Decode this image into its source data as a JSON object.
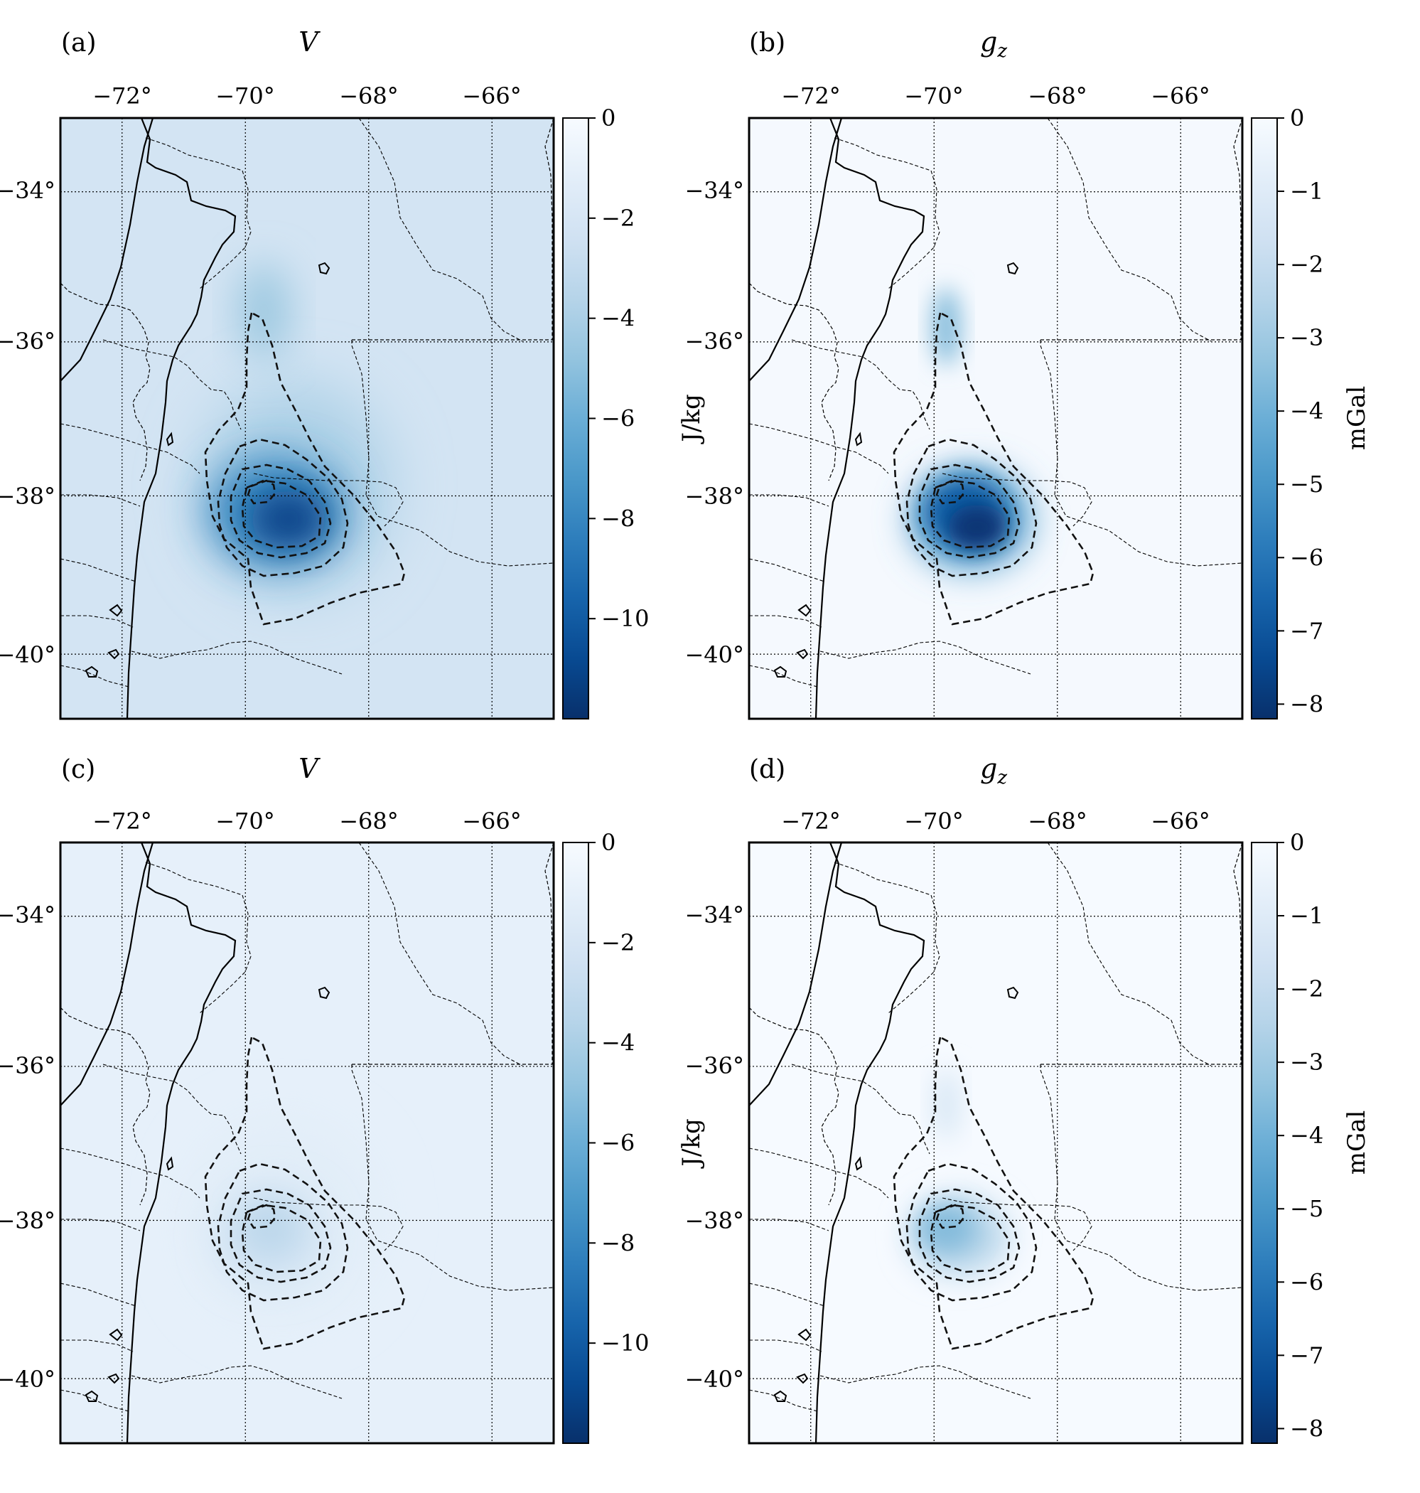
{
  "figure": {
    "panels": [
      {
        "id": "a",
        "label": "(a)",
        "title": "V",
        "title_sub": "",
        "colorbar_label": "J/kg",
        "cbar_key": "V"
      },
      {
        "id": "b",
        "label": "(b)",
        "title": "g",
        "title_sub": "z",
        "colorbar_label": "mGal",
        "cbar_key": "gz"
      },
      {
        "id": "c",
        "label": "(c)",
        "title": "V",
        "title_sub": "",
        "colorbar_label": "J/kg",
        "cbar_key": "V"
      },
      {
        "id": "d",
        "label": "(d)",
        "title": "g",
        "title_sub": "z",
        "colorbar_label": "mGal",
        "cbar_key": "gz"
      }
    ],
    "longitude_ticks": [
      "−72°",
      "−70°",
      "−68°",
      "−66°"
    ],
    "latitude_ticks": [
      "−34°",
      "−36°",
      "−38°",
      "−40°"
    ],
    "colors": {
      "dark": "#08306b",
      "mid": "#4292c6",
      "light": "#f7fbff",
      "contour": "#111111"
    }
  },
  "chart_data": [
    {
      "type": "heatmap",
      "panel": "a",
      "title": "V",
      "colorbar_label": "J/kg",
      "xlim": [
        -73,
        -65
      ],
      "ylim": [
        -40.8,
        -33
      ],
      "vmin": -12,
      "vmax": 0,
      "colorbar_ticks": [
        0,
        -2,
        -4,
        -6,
        -8,
        -10
      ],
      "colorbar_tick_labels": [
        "0",
        "−2",
        "−4",
        "−6",
        "−8",
        "−10"
      ],
      "peak_location": [
        -69.4,
        -38.2
      ],
      "peak_value": -11.5,
      "background_value": -2.2
    },
    {
      "type": "heatmap",
      "panel": "b",
      "title": "gz",
      "colorbar_label": "mGal",
      "xlim": [
        -73,
        -65
      ],
      "ylim": [
        -40.8,
        -33
      ],
      "vmin": -8.2,
      "vmax": 0,
      "colorbar_ticks": [
        0,
        -1,
        -2,
        -3,
        -4,
        -5,
        -6,
        -7,
        -8
      ],
      "colorbar_tick_labels": [
        "0",
        "−1",
        "−2",
        "−3",
        "−4",
        "−5",
        "−6",
        "−7",
        "−8"
      ],
      "peak_location": [
        -69.4,
        -38.3
      ],
      "peak_value": -8,
      "background_value": -0.1
    },
    {
      "type": "heatmap",
      "panel": "c",
      "title": "V",
      "colorbar_label": "J/kg",
      "xlim": [
        -73,
        -65
      ],
      "ylim": [
        -40.8,
        -33
      ],
      "vmin": -12,
      "vmax": 0,
      "colorbar_ticks": [
        0,
        -2,
        -4,
        -6,
        -8,
        -10
      ],
      "colorbar_tick_labels": [
        "0",
        "−2",
        "−4",
        "−6",
        "−8",
        "−10"
      ],
      "peak_location": [
        -69.6,
        -38.1
      ],
      "peak_value": -6.5,
      "background_value": -1
    },
    {
      "type": "heatmap",
      "panel": "d",
      "title": "gz",
      "colorbar_label": "mGal",
      "xlim": [
        -73,
        -65
      ],
      "ylim": [
        -40.8,
        -33
      ],
      "vmin": -8.2,
      "vmax": 0,
      "colorbar_ticks": [
        0,
        -1,
        -2,
        -3,
        -4,
        -5,
        -6,
        -7,
        -8
      ],
      "colorbar_tick_labels": [
        "0",
        "−1",
        "−2",
        "−3",
        "−4",
        "−5",
        "−6",
        "−7",
        "−8"
      ],
      "peak_location": [
        -69.8,
        -38.1
      ],
      "peak_value": -5.5,
      "background_value": -0.05
    }
  ]
}
